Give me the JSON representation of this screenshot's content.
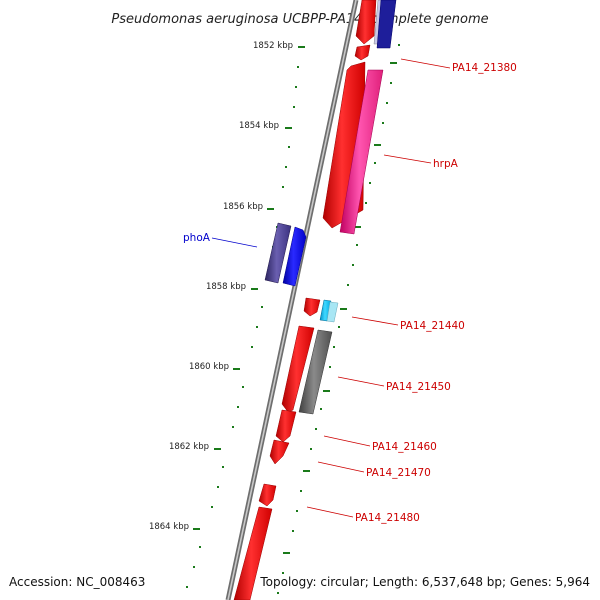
{
  "title": "Pseudomonas aeruginosa UCBPP-PA14, complete genome",
  "footer": {
    "accession": "Accession: NC_008463",
    "topology": "Topology: circular; Length: 6,537,648 bp; Genes: 5,964"
  },
  "kbp_labels": [
    "1852 kbp",
    "1854 kbp",
    "1856 kbp",
    "1858 kbp",
    "1860 kbp",
    "1862 kbp",
    "1864 kbp"
  ],
  "gene_labels": {
    "pa14_21380": "PA14_21380",
    "hrpA": "hrpA",
    "phoA": "phoA",
    "pa14_21440": "PA14_21440",
    "pa14_21450": "PA14_21450",
    "pa14_21460": "PA14_21460",
    "pa14_21470": "PA14_21470",
    "pa14_21480": "PA14_21480"
  },
  "colors": {
    "red_gene": "#ff0000",
    "pink_gene": "#ff1493",
    "blue_gene": "#0000ee",
    "slate_gene": "#483d8b",
    "gray_gene": "#606060",
    "cyan_gene": "#00bfff",
    "tick": "#1a7a1a",
    "label_red": "#cc0000",
    "label_blue": "#0000cc",
    "backbone": "#888888"
  }
}
